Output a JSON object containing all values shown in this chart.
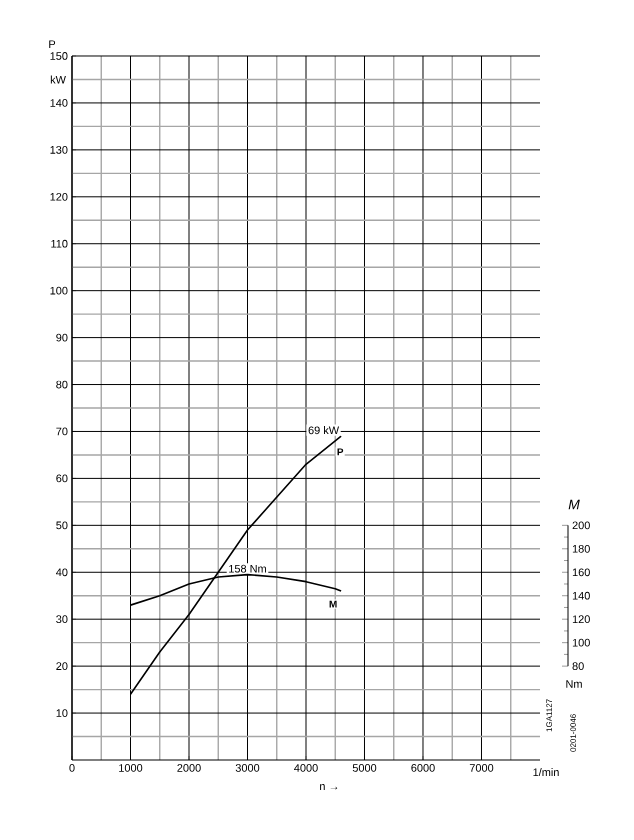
{
  "chart_data": {
    "type": "line",
    "ylabel": "P",
    "y2label": "M",
    "xlabel": "n →",
    "x": [
      1000,
      1500,
      2000,
      2500,
      3000,
      3500,
      4000,
      4500,
      4600
    ],
    "series": [
      {
        "name": "P",
        "color": "#000000",
        "values": [
          14,
          23,
          31,
          40,
          49,
          56,
          63,
          68,
          69
        ]
      },
      {
        "name": "M",
        "color": "#000000",
        "axis": "y2",
        "values": [
          132,
          140,
          150,
          156,
          158,
          156,
          152,
          146,
          144
        ]
      }
    ],
    "xlim": [
      0,
      8000
    ],
    "xticks": [
      0,
      1000,
      2000,
      3000,
      4000,
      5000,
      6000,
      7000
    ],
    "ylim": [
      0,
      150
    ],
    "yticks": [
      10,
      20,
      30,
      40,
      50,
      60,
      70,
      80,
      90,
      100,
      110,
      120,
      130,
      140,
      150
    ],
    "y2lim": [
      0,
      600
    ],
    "y2ticks": [
      80,
      100,
      120,
      140,
      160,
      180,
      200
    ],
    "annotations": [
      {
        "text": "69 kW",
        "x": 4600,
        "y": 69
      },
      {
        "text": "158 Nm",
        "x": 3000,
        "y": 39.5
      },
      "Nm",
      "1/min",
      "kW",
      "1GA1127",
      "0201-0046"
    ],
    "grid": true,
    "marker": "none",
    "line_style": "solid"
  }
}
